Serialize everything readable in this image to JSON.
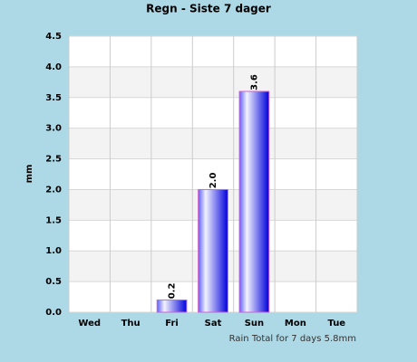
{
  "chart_data": {
    "type": "bar",
    "title": "Regn - Siste 7 dager",
    "y_label": "mm",
    "categories": [
      "Wed",
      "Thu",
      "Fri",
      "Sat",
      "Sun",
      "Mon",
      "Tue"
    ],
    "values": [
      0,
      0,
      0.2,
      2.0,
      3.6,
      0,
      0
    ],
    "value_labels": [
      null,
      null,
      "0.2",
      "2.0",
      "3.6",
      null,
      null
    ],
    "color": "#0000dd",
    "ylim": [
      0,
      4.5
    ],
    "yticks": [
      {
        "value": 0,
        "label": "0.0"
      },
      0.5,
      {
        "value": 1,
        "label": "1.0"
      },
      1.5,
      {
        "value": 2,
        "label": "2.0"
      },
      2.5,
      {
        "value": 3,
        "label": "3.0"
      },
      3.5,
      {
        "value": 4,
        "label": "4.0"
      },
      4.5
    ],
    "grid": true,
    "footer": "Rain Total for 7 days 5.8mm"
  }
}
